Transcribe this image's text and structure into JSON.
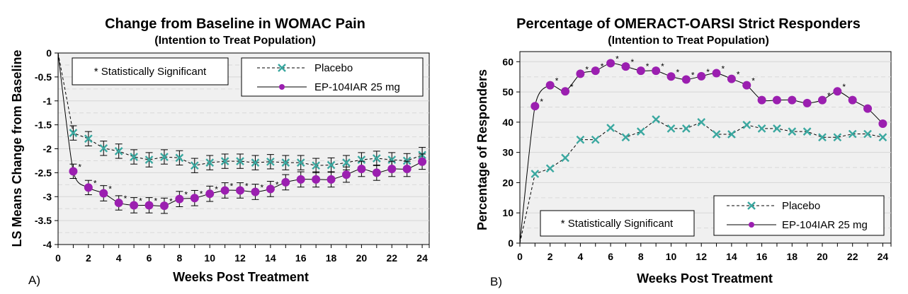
{
  "colors": {
    "placebo": "#3aa8a0",
    "treatment": "#9b1fb0",
    "plot_bg": "#f0f0f0",
    "grid_major": "#d6d6d6",
    "grid_minor": "#d9d9d9"
  },
  "chart_data": [
    {
      "id": "A",
      "type": "line",
      "panel_label": "A)",
      "title": "Change from Baseline in WOMAC Pain",
      "subtitle": "(Intention to Treat Population)",
      "xlabel": "Weeks Post Treatment",
      "ylabel": "LS Means Change from Baseline",
      "xlim": [
        0,
        24.5
      ],
      "ylim": [
        -4,
        0
      ],
      "xticks": [
        0,
        2,
        4,
        6,
        8,
        10,
        12,
        14,
        16,
        18,
        20,
        22,
        24
      ],
      "yticks": [
        0,
        -0.5,
        -1,
        -1.5,
        -2,
        -2.5,
        -3,
        -3.5,
        -4
      ],
      "ytick_labels": [
        "0",
        "-0.5",
        "-1",
        "-1.5",
        "-2",
        "-2.5",
        "-3",
        "-3.5",
        "-4"
      ],
      "grid": true,
      "legend_position": "top-right",
      "annotation": "* Statistically Significant",
      "x": [
        0,
        1,
        2,
        3,
        4,
        5,
        6,
        7,
        8,
        9,
        10,
        11,
        12,
        13,
        14,
        15,
        16,
        17,
        18,
        19,
        20,
        21,
        22,
        23,
        24
      ],
      "series": [
        {
          "name": "Placebo",
          "marker": "x",
          "line": "dashed",
          "values": [
            0,
            -1.67,
            -1.79,
            -1.99,
            -2.05,
            -2.17,
            -2.23,
            -2.17,
            -2.19,
            -2.35,
            -2.29,
            -2.26,
            -2.26,
            -2.29,
            -2.27,
            -2.29,
            -2.29,
            -2.35,
            -2.34,
            -2.29,
            -2.23,
            -2.2,
            -2.23,
            -2.25,
            -2.13
          ],
          "error": [
            0,
            0.15,
            0.15,
            0.15,
            0.15,
            0.15,
            0.15,
            0.15,
            0.15,
            0.15,
            0.15,
            0.15,
            0.15,
            0.15,
            0.15,
            0.15,
            0.15,
            0.15,
            0.15,
            0.15,
            0.15,
            0.15,
            0.15,
            0.15,
            0.16
          ],
          "significant": []
        },
        {
          "name": "EP-104IAR 25 mg",
          "marker": "circle",
          "line": "solid",
          "values": [
            0,
            -2.47,
            -2.81,
            -2.93,
            -3.13,
            -3.18,
            -3.18,
            -3.19,
            -3.05,
            -3.03,
            -2.94,
            -2.87,
            -2.87,
            -2.9,
            -2.84,
            -2.7,
            -2.64,
            -2.64,
            -2.64,
            -2.54,
            -2.42,
            -2.5,
            -2.42,
            -2.42,
            -2.27
          ],
          "error": [
            0,
            0.15,
            0.15,
            0.16,
            0.15,
            0.16,
            0.16,
            0.16,
            0.16,
            0.16,
            0.16,
            0.16,
            0.16,
            0.16,
            0.16,
            0.16,
            0.16,
            0.16,
            0.16,
            0.16,
            0.16,
            0.16,
            0.16,
            0.16,
            0.16
          ],
          "significant": [
            1,
            2,
            3,
            4,
            5,
            6,
            7,
            8,
            9,
            10,
            11,
            12,
            13,
            14
          ]
        }
      ]
    },
    {
      "id": "B",
      "type": "line",
      "panel_label": "B)",
      "title": "Percentage of OMERACT-OARSI Strict Responders",
      "subtitle": "(Intention to Treat Population)",
      "xlabel": "Weeks Post Treatment",
      "ylabel": "Percentage of Responders",
      "xlim": [
        0,
        24.6
      ],
      "ylim": [
        0,
        63
      ],
      "xticks": [
        0,
        2,
        4,
        6,
        8,
        10,
        12,
        14,
        16,
        18,
        20,
        22,
        24
      ],
      "yticks": [
        0,
        10,
        20,
        30,
        40,
        50,
        60
      ],
      "ytick_labels": [
        "0",
        "10",
        "20",
        "30",
        "40",
        "50",
        "60"
      ],
      "grid": true,
      "legend_position": "bottom-right",
      "annotation": "* Statistically Significant",
      "x": [
        0,
        1,
        2,
        3,
        4,
        5,
        6,
        7,
        8,
        9,
        10,
        11,
        12,
        13,
        14,
        15,
        16,
        17,
        18,
        19,
        20,
        21,
        22,
        23,
        24
      ],
      "series": [
        {
          "name": "Placebo",
          "marker": "x",
          "line": "dashed",
          "values": [
            0,
            22.9,
            24.7,
            28.2,
            34.2,
            34.2,
            38.1,
            35.0,
            36.9,
            40.9,
            37.9,
            37.9,
            40.0,
            36.0,
            36.0,
            39.1,
            37.9,
            37.9,
            36.9,
            36.9,
            35.0,
            35.0,
            36.1,
            36.1,
            35.0
          ],
          "significant": []
        },
        {
          "name": "EP-104IAR 25 mg",
          "marker": "circle",
          "line": "solid",
          "values": [
            0,
            45.3,
            52.2,
            50.2,
            56.0,
            57.0,
            59.5,
            58.4,
            57.0,
            57.0,
            55.1,
            54.1,
            55.2,
            56.2,
            54.3,
            52.2,
            47.3,
            47.3,
            47.3,
            46.3,
            47.3,
            50.2,
            47.3,
            44.5,
            39.5
          ],
          "significant": [
            1,
            2,
            3,
            4,
            5,
            6,
            7,
            8,
            9,
            10,
            11,
            12,
            13,
            14,
            15,
            20,
            21
          ]
        }
      ]
    }
  ]
}
